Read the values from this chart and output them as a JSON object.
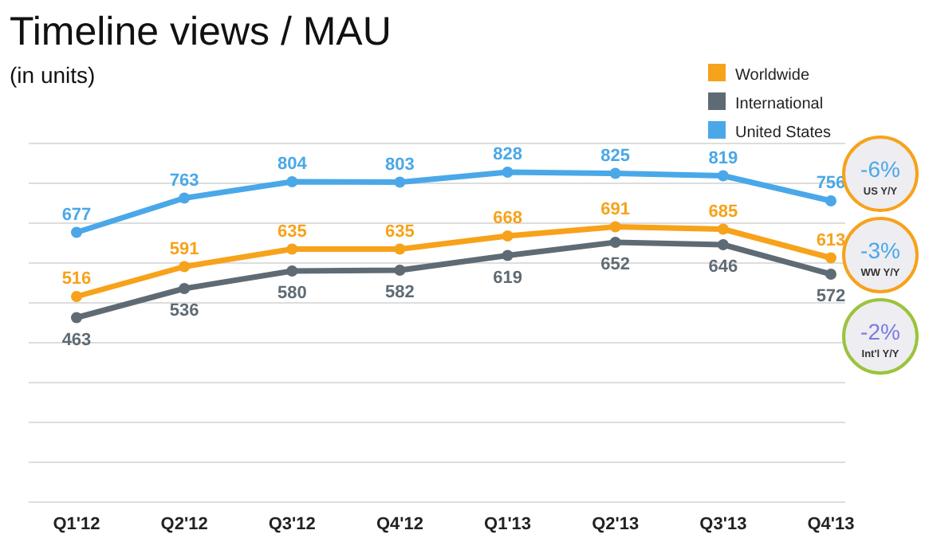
{
  "chart_data": {
    "type": "line",
    "title": "Timeline views / MAU",
    "subtitle": "(in units)",
    "categories": [
      "Q1'12",
      "Q2'12",
      "Q3'12",
      "Q4'12",
      "Q1'13",
      "Q2'13",
      "Q3'13",
      "Q4'13"
    ],
    "series": [
      {
        "name": "Worldwide",
        "color": "#f7a21b",
        "values": [
          516,
          591,
          635,
          635,
          668,
          691,
          685,
          613
        ]
      },
      {
        "name": "International",
        "color": "#5f6b74",
        "values": [
          463,
          536,
          580,
          582,
          619,
          652,
          646,
          572
        ]
      },
      {
        "name": "United States",
        "color": "#4aa8e8",
        "values": [
          677,
          763,
          804,
          803,
          828,
          825,
          819,
          756
        ]
      }
    ],
    "ylim": [
      0,
      900
    ],
    "yticks": [
      {
        "value": 0,
        "label": null
      },
      {
        "value": 100,
        "label": null
      },
      {
        "value": 200,
        "label": null
      },
      {
        "value": 300,
        "label": null
      },
      {
        "value": 400,
        "label": null
      },
      {
        "value": 500,
        "label": null
      },
      {
        "value": 600,
        "label": null
      },
      {
        "value": 700,
        "label": null
      },
      {
        "value": 800,
        "label": null
      },
      {
        "value": 900,
        "label": null
      }
    ],
    "tick_labels": "x",
    "grid": "y",
    "legend": "top right",
    "marker": "circle",
    "line_style": "solid",
    "data_labels": true,
    "annotations": [
      "-6%\nUS Y/Y",
      "-3%\nWW Y/Y",
      "-2%\nInt'l Y/Y"
    ]
  }
}
